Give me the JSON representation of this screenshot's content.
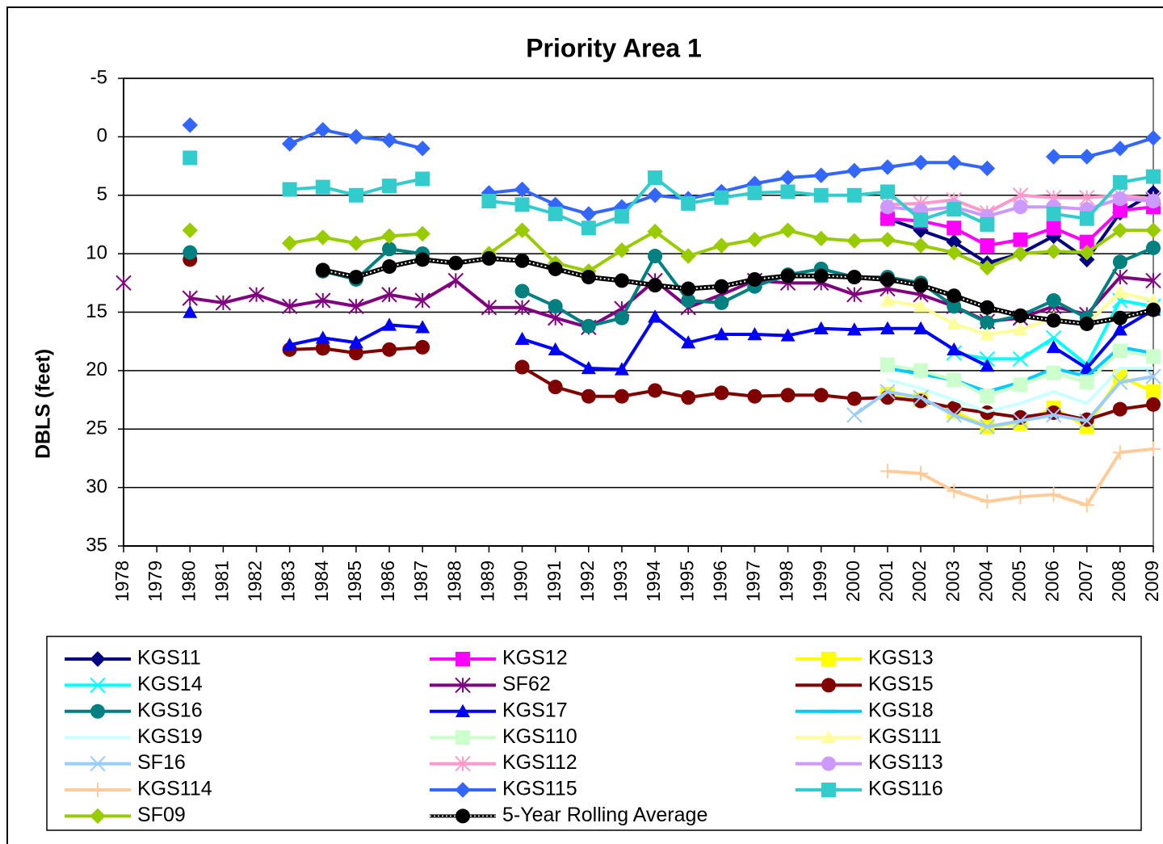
{
  "chart_data": {
    "type": "line",
    "title": "Priority Area 1",
    "y_label": "DBLS (feet)",
    "categories": [
      "1978",
      "1979",
      "1980",
      "1981",
      "1982",
      "1983",
      "1984",
      "1985",
      "1986",
      "1987",
      "1988",
      "1989",
      "1990",
      "1991",
      "1992",
      "1993",
      "1994",
      "1995",
      "1996",
      "1997",
      "1998",
      "1999",
      "2000",
      "2001",
      "2002",
      "2003",
      "2004",
      "2005",
      "2006",
      "2007",
      "2008",
      "2009"
    ],
    "ylim": [
      -5,
      35
    ],
    "yticks": [
      -5,
      0,
      5,
      10,
      15,
      20,
      25,
      30,
      35
    ],
    "y_inverted": true,
    "grid": true,
    "legend": "bottom",
    "series": [
      {
        "name": "KGS11",
        "color": "#000080",
        "marker": "diamond",
        "values": [
          null,
          null,
          null,
          null,
          null,
          null,
          null,
          null,
          null,
          null,
          null,
          null,
          null,
          null,
          null,
          null,
          null,
          null,
          null,
          null,
          null,
          null,
          null,
          7.0,
          8.0,
          9.0,
          10.8,
          10.0,
          8.5,
          10.5,
          6.5,
          4.8
        ]
      },
      {
        "name": "KGS12",
        "color": "#ff00ff",
        "marker": "square",
        "values": [
          null,
          null,
          null,
          null,
          null,
          null,
          null,
          null,
          null,
          null,
          null,
          null,
          null,
          null,
          null,
          null,
          null,
          null,
          null,
          null,
          null,
          null,
          null,
          7.0,
          7.2,
          7.8,
          9.3,
          8.8,
          7.8,
          9.0,
          6.3,
          6.0
        ]
      },
      {
        "name": "KGS13",
        "color": "#ffff00",
        "marker": "square",
        "values": [
          null,
          null,
          null,
          null,
          null,
          null,
          null,
          null,
          null,
          null,
          null,
          null,
          null,
          null,
          null,
          null,
          null,
          null,
          null,
          null,
          null,
          null,
          null,
          22.0,
          22.5,
          23.5,
          24.8,
          24.5,
          23.2,
          24.8,
          20.5,
          21.8
        ]
      },
      {
        "name": "KGS14",
        "color": "#00ffff",
        "marker": "x",
        "values": [
          null,
          null,
          null,
          null,
          null,
          null,
          null,
          null,
          null,
          null,
          null,
          null,
          null,
          null,
          null,
          null,
          null,
          null,
          null,
          null,
          null,
          null,
          null,
          null,
          null,
          18.5,
          19.0,
          19.0,
          17.2,
          19.5,
          14.0,
          14.5
        ]
      },
      {
        "name": "SF62",
        "color": "#800080",
        "marker": "star",
        "values": [
          12.5,
          null,
          13.8,
          14.2,
          13.5,
          14.5,
          14.0,
          14.5,
          13.5,
          14.0,
          12.3,
          14.6,
          14.6,
          15.5,
          16.3,
          14.7,
          12.3,
          14.6,
          13.5,
          12.3,
          12.5,
          12.5,
          13.5,
          13.0,
          13.5,
          14.5,
          15.8,
          15.5,
          14.5,
          15.2,
          12.0,
          12.3
        ]
      },
      {
        "name": "KGS15",
        "color": "#800000",
        "marker": "circle",
        "values": [
          null,
          null,
          10.5,
          null,
          null,
          18.2,
          18.1,
          18.5,
          18.2,
          18.0,
          null,
          null,
          19.7,
          21.4,
          22.2,
          22.2,
          21.7,
          22.3,
          21.9,
          22.2,
          22.1,
          22.1,
          22.4,
          22.3,
          22.6,
          23.2,
          23.6,
          24.0,
          23.6,
          24.2,
          23.3,
          22.9
        ]
      },
      {
        "name": "KGS16",
        "color": "#008080",
        "marker": "circle",
        "values": [
          null,
          null,
          9.9,
          null,
          null,
          null,
          11.5,
          12.2,
          9.6,
          10.0,
          null,
          null,
          13.2,
          14.5,
          16.2,
          15.5,
          10.2,
          14.0,
          14.2,
          12.8,
          11.8,
          11.3,
          12.0,
          12.0,
          12.5,
          14.5,
          15.9,
          15.3,
          14.0,
          15.5,
          10.7,
          9.5
        ]
      },
      {
        "name": "KGS17",
        "color": "#0000ff",
        "marker": "triangle",
        "values": [
          null,
          null,
          15.0,
          null,
          null,
          17.8,
          17.2,
          17.6,
          16.1,
          16.3,
          null,
          null,
          17.3,
          18.2,
          19.8,
          19.9,
          15.4,
          17.6,
          16.9,
          16.9,
          17.0,
          16.4,
          16.5,
          16.4,
          16.4,
          18.2,
          19.6,
          null,
          18.0,
          19.8,
          16.5,
          14.8
        ]
      },
      {
        "name": "KGS18",
        "color": "#00ccff",
        "marker": "dash",
        "values": [
          null,
          null,
          null,
          null,
          null,
          null,
          null,
          null,
          null,
          null,
          null,
          null,
          null,
          null,
          null,
          null,
          null,
          null,
          null,
          null,
          null,
          null,
          null,
          19.8,
          20.3,
          20.8,
          21.8,
          21.0,
          19.8,
          20.5,
          18.0,
          18.5
        ]
      },
      {
        "name": "KGS19",
        "color": "#ccffff",
        "marker": "none",
        "values": [
          null,
          null,
          null,
          null,
          null,
          null,
          null,
          null,
          null,
          null,
          null,
          null,
          null,
          null,
          null,
          null,
          null,
          null,
          null,
          null,
          null,
          null,
          null,
          20.8,
          21.5,
          22.5,
          23.5,
          22.8,
          21.8,
          22.8,
          19.8,
          19.8
        ]
      },
      {
        "name": "KGS110",
        "color": "#ccffcc",
        "marker": "square",
        "values": [
          null,
          null,
          null,
          null,
          null,
          null,
          null,
          null,
          null,
          null,
          null,
          null,
          null,
          null,
          null,
          null,
          null,
          null,
          null,
          null,
          null,
          null,
          null,
          19.5,
          20.0,
          20.8,
          22.2,
          21.2,
          20.2,
          21.0,
          18.3,
          18.8
        ]
      },
      {
        "name": "KGS111",
        "color": "#ffff99",
        "marker": "triangle",
        "values": [
          null,
          null,
          null,
          null,
          null,
          null,
          null,
          null,
          null,
          null,
          null,
          null,
          null,
          null,
          null,
          null,
          null,
          null,
          null,
          null,
          null,
          null,
          null,
          14.0,
          14.5,
          16.0,
          16.9,
          16.5,
          15.5,
          16.0,
          13.3,
          14.0
        ]
      },
      {
        "name": "SF16",
        "color": "#99ccff",
        "marker": "x",
        "values": [
          null,
          null,
          null,
          null,
          null,
          null,
          null,
          null,
          null,
          null,
          null,
          null,
          null,
          null,
          null,
          null,
          null,
          null,
          null,
          null,
          null,
          null,
          23.8,
          21.8,
          22.3,
          23.8,
          24.8,
          24.3,
          23.8,
          24.3,
          21.0,
          20.5
        ]
      },
      {
        "name": "KGS112",
        "color": "#ff99cc",
        "marker": "star",
        "values": [
          null,
          null,
          null,
          null,
          null,
          null,
          null,
          null,
          null,
          null,
          null,
          null,
          null,
          null,
          null,
          null,
          null,
          null,
          null,
          null,
          null,
          null,
          null,
          5.8,
          5.7,
          5.4,
          6.5,
          5.0,
          5.2,
          5.2,
          5.0,
          5.3
        ]
      },
      {
        "name": "KGS113",
        "color": "#cc99ff",
        "marker": "circle",
        "values": [
          null,
          null,
          null,
          null,
          null,
          null,
          null,
          null,
          null,
          null,
          null,
          null,
          null,
          null,
          null,
          null,
          null,
          null,
          null,
          null,
          null,
          null,
          null,
          6.0,
          6.3,
          6.0,
          6.8,
          6.0,
          6.0,
          6.2,
          5.3,
          5.5
        ]
      },
      {
        "name": "KGS114",
        "color": "#ffcc99",
        "marker": "plus",
        "values": [
          null,
          null,
          null,
          null,
          null,
          null,
          null,
          null,
          null,
          null,
          null,
          null,
          null,
          null,
          null,
          null,
          null,
          null,
          null,
          null,
          null,
          null,
          null,
          28.6,
          28.8,
          30.3,
          31.2,
          30.8,
          30.6,
          31.5,
          27.0,
          26.7
        ]
      },
      {
        "name": "KGS115",
        "color": "#3366ff",
        "marker": "diamond",
        "values": [
          null,
          null,
          -1.0,
          null,
          null,
          0.6,
          -0.6,
          0.0,
          0.3,
          1.0,
          null,
          4.8,
          4.5,
          5.8,
          6.6,
          6.0,
          5.0,
          5.3,
          4.7,
          4.0,
          3.5,
          3.3,
          2.9,
          2.6,
          2.2,
          2.2,
          2.7,
          null,
          1.7,
          1.7,
          1.0,
          0.1
        ]
      },
      {
        "name": "KGS116",
        "color": "#33cccc",
        "marker": "square",
        "values": [
          null,
          null,
          1.8,
          null,
          null,
          4.5,
          4.3,
          5.0,
          4.2,
          3.6,
          null,
          5.5,
          5.8,
          6.6,
          7.8,
          6.8,
          3.5,
          5.7,
          5.2,
          4.8,
          4.7,
          5.0,
          5.0,
          4.7,
          7.1,
          6.2,
          7.5,
          null,
          6.6,
          7.0,
          3.9,
          3.4
        ]
      },
      {
        "name": "SF09",
        "color": "#99cc00",
        "marker": "diamond",
        "values": [
          null,
          null,
          8.0,
          null,
          null,
          9.1,
          8.6,
          9.1,
          8.5,
          8.3,
          null,
          10.0,
          8.0,
          10.8,
          11.5,
          9.7,
          8.1,
          10.2,
          9.3,
          8.8,
          8.0,
          8.7,
          8.9,
          8.8,
          9.3,
          9.9,
          11.2,
          10.0,
          9.8,
          9.9,
          8.0,
          8.0
        ]
      },
      {
        "name": "5-Year Rolling  Average",
        "color": "#000000",
        "marker": "circle",
        "dash": true,
        "values": [
          null,
          null,
          null,
          null,
          null,
          null,
          11.4,
          12.0,
          11.1,
          10.5,
          10.8,
          10.4,
          10.6,
          11.3,
          12.0,
          12.3,
          12.7,
          13.0,
          12.8,
          12.2,
          11.9,
          11.9,
          12.0,
          12.2,
          12.7,
          13.6,
          14.6,
          15.3,
          15.7,
          16.0,
          15.5,
          14.8
        ]
      }
    ]
  }
}
